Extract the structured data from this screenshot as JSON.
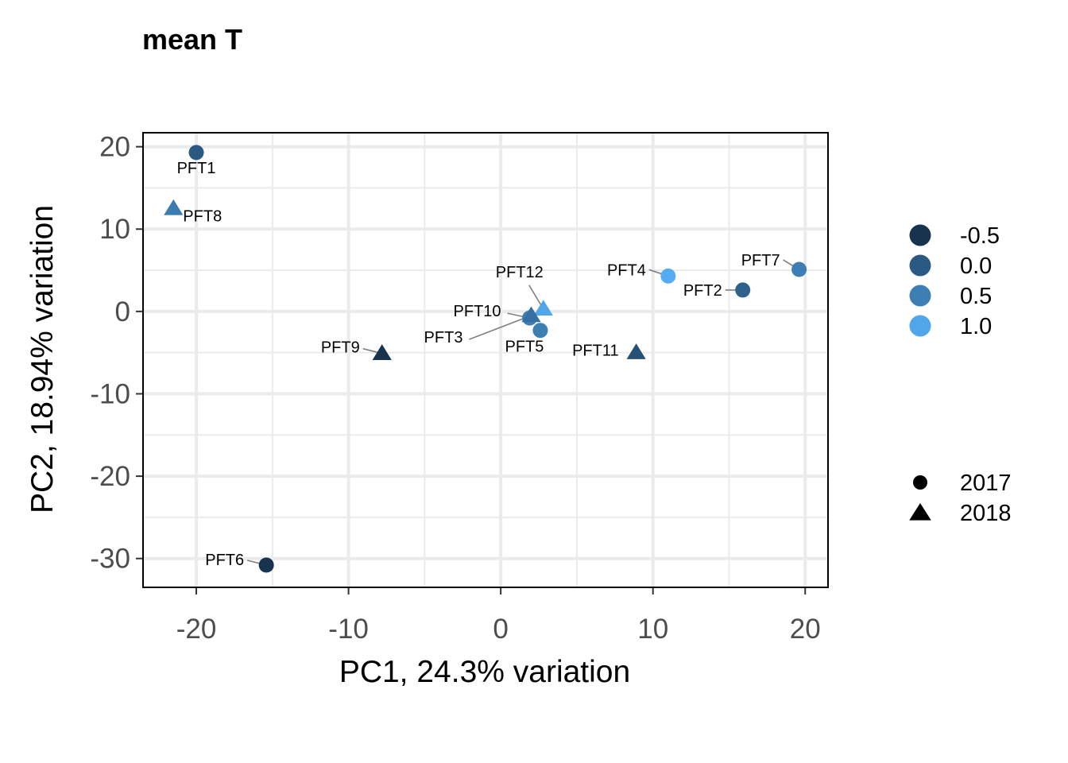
{
  "chart_data": {
    "type": "scatter",
    "title": "mean T",
    "xlabel": "PC1, 24.3% variation",
    "ylabel": "PC2, 18.94% variation",
    "xlim": [
      -23.5,
      21.5
    ],
    "ylim": [
      -33.5,
      21.7
    ],
    "xticks": [
      -20,
      -10,
      0,
      10,
      20
    ],
    "xtick_labels": [
      "-20",
      "-10",
      "0",
      "10",
      "20"
    ],
    "yticks": [
      20,
      10,
      0,
      -10,
      -20,
      -30
    ],
    "ytick_labels": [
      "20",
      "10",
      "0",
      "-10",
      "-20",
      "-30"
    ],
    "grid": true,
    "legend_position": "right",
    "color_legend": {
      "labels": [
        "-0.5",
        "0.0",
        "0.5",
        "1.0"
      ],
      "values": [
        -0.5,
        0.0,
        0.5,
        1.0
      ],
      "low_color": "#132b43",
      "high_color": "#56b1f7"
    },
    "shape_legend": {
      "labels": [
        "2017",
        "2018"
      ],
      "shapes": [
        "circle",
        "triangle"
      ]
    },
    "points": [
      {
        "label": "PFT1",
        "x": -20.0,
        "y": 19.3,
        "color_value": 0.0,
        "shape": "circle"
      },
      {
        "label": "PFT8",
        "x": -21.5,
        "y": 12.5,
        "color_value": 0.45,
        "shape": "triangle"
      },
      {
        "label": "PFT12",
        "x": 2.8,
        "y": 0.3,
        "color_value": 1.0,
        "shape": "triangle"
      },
      {
        "label": "PFT10",
        "x": 1.9,
        "y": -0.8,
        "color_value": 0.5,
        "shape": "circle"
      },
      {
        "label": "PFT3",
        "x": 2.0,
        "y": -0.5,
        "color_value": 0.3,
        "shape": "triangle"
      },
      {
        "label": "PFT5",
        "x": 2.6,
        "y": -2.3,
        "color_value": 0.5,
        "shape": "circle"
      },
      {
        "label": "PFT4",
        "x": 11.0,
        "y": 4.3,
        "color_value": 1.1,
        "shape": "circle"
      },
      {
        "label": "PFT7",
        "x": 19.6,
        "y": 5.1,
        "color_value": 0.5,
        "shape": "circle"
      },
      {
        "label": "PFT2",
        "x": 15.9,
        "y": 2.6,
        "color_value": 0.1,
        "shape": "circle"
      },
      {
        "label": "PFT9",
        "x": -7.8,
        "y": -5.1,
        "color_value": -0.5,
        "shape": "triangle"
      },
      {
        "label": "PFT11",
        "x": 8.9,
        "y": -5.0,
        "color_value": -0.1,
        "shape": "triangle"
      },
      {
        "label": "PFT6",
        "x": -15.4,
        "y": -30.8,
        "color_value": -0.5,
        "shape": "circle"
      }
    ]
  }
}
